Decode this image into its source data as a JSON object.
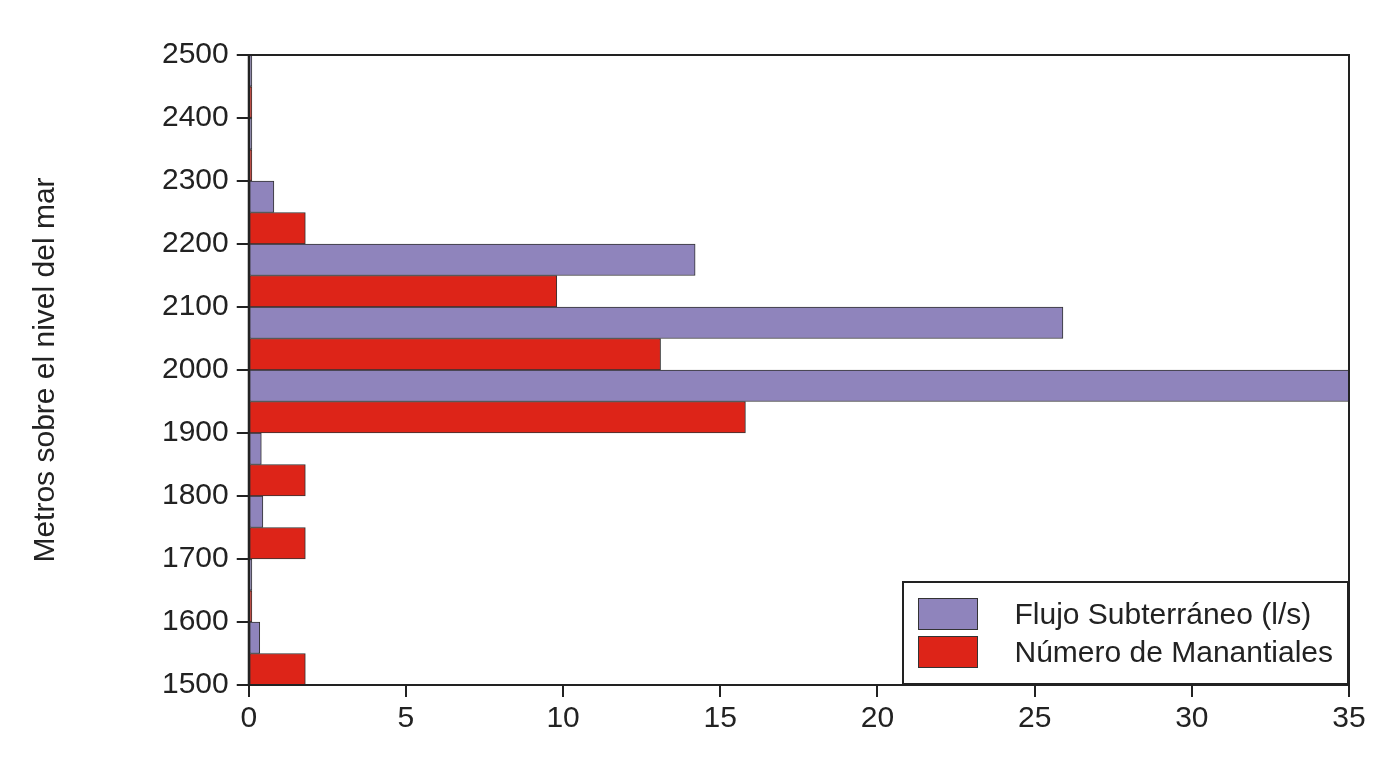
{
  "chart_data": {
    "type": "bar",
    "orientation": "horizontal",
    "ylabel": "Metros sobre el nivel del mar",
    "series": [
      {
        "name": "Flujo Subterráneo (l/s)",
        "color": "#8f84bc",
        "x": [
          1575,
          1675,
          1775,
          1875,
          1975,
          2075,
          2175,
          2275,
          2375,
          2475
        ],
        "values": [
          0.35,
          0.1,
          0.45,
          0.4,
          35,
          25.9,
          14.2,
          0.8,
          0.1,
          0.1
        ]
      },
      {
        "name": "Número de Manantiales",
        "color": "#dd2418",
        "x": [
          1525,
          1625,
          1725,
          1825,
          1925,
          2025,
          2125,
          2225,
          2325,
          2425
        ],
        "values": [
          1.8,
          0.1,
          1.8,
          1.8,
          15.8,
          13.1,
          9.8,
          1.8,
          0.1,
          0.1
        ]
      }
    ],
    "xlim": [
      0,
      35
    ],
    "xticks": [
      0,
      5,
      10,
      15,
      20,
      25,
      30,
      35
    ],
    "ylim": [
      1500,
      2500
    ],
    "yticks": [
      1500,
      1600,
      1700,
      1800,
      1900,
      2000,
      2100,
      2200,
      2300,
      2400,
      2500
    ],
    "grid": false,
    "legend": "bottom right"
  }
}
